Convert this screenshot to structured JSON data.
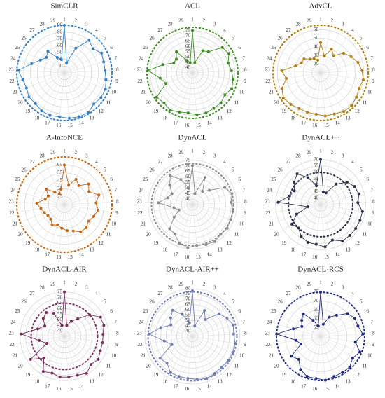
{
  "chart_data": [
    {
      "type": "radar",
      "title": "SimCLR",
      "color": "#2f7fc8",
      "categories": [
        "1",
        "2",
        "3",
        "4",
        "5",
        "6",
        "7",
        "8",
        "9",
        "10",
        "11",
        "12",
        "13",
        "14",
        "15",
        "16",
        "17",
        "18",
        "19",
        "20",
        "21",
        "22",
        "23",
        "24",
        "25",
        "26",
        "27",
        "28",
        "29"
      ],
      "values": [
        90,
        35,
        60,
        80,
        75,
        82,
        80,
        80,
        82,
        85,
        85,
        83,
        88,
        88,
        87,
        85,
        86,
        85,
        82,
        83,
        80,
        82,
        88,
        70,
        60,
        55,
        60,
        45,
        40
      ],
      "rlim": [
        20,
        90
      ],
      "rticks": [
        30,
        40,
        50,
        60,
        70,
        80,
        90
      ],
      "reference": 90
    },
    {
      "type": "radar",
      "title": "ACL",
      "color": "#3a8f1e",
      "categories": [
        "1",
        "2",
        "3",
        "4",
        "5",
        "6",
        "7",
        "8",
        "9",
        "10",
        "11",
        "12",
        "13",
        "14",
        "15",
        "16",
        "17",
        "18",
        "19",
        "20",
        "21",
        "22",
        "23",
        "24",
        "25",
        "26",
        "27",
        "28",
        "29"
      ],
      "values": [
        75,
        45,
        58,
        60,
        72,
        74,
        70,
        72,
        74,
        75,
        72,
        74,
        74,
        75,
        75,
        73,
        74,
        76,
        74,
        76,
        62,
        66,
        77,
        64,
        55,
        55,
        60,
        48,
        45
      ],
      "rlim": [
        35,
        80
      ],
      "rticks": [
        40,
        45,
        50,
        55,
        60,
        65,
        70,
        75
      ],
      "reference": 78
    },
    {
      "type": "radar",
      "title": "AdvCL",
      "color": "#b07d0a",
      "categories": [
        "1",
        "2",
        "3",
        "4",
        "5",
        "6",
        "7",
        "8",
        "9",
        "10",
        "11",
        "12",
        "13",
        "14",
        "15",
        "16",
        "17",
        "18",
        "19",
        "20",
        "21",
        "22",
        "23",
        "24",
        "25",
        "26",
        "27",
        "28",
        "29"
      ],
      "values": [
        45,
        30,
        40,
        35,
        45,
        50,
        55,
        58,
        60,
        58,
        60,
        62,
        62,
        60,
        60,
        58,
        58,
        58,
        60,
        62,
        58,
        50,
        55,
        40,
        35,
        35,
        30,
        28,
        25
      ],
      "rlim": [
        10,
        65
      ],
      "rticks": [
        20,
        30,
        40,
        50,
        60
      ],
      "reference": 65
    },
    {
      "type": "radar",
      "title": "A-InfoNCE",
      "color": "#c8640f",
      "categories": [
        "1",
        "2",
        "3",
        "4",
        "5",
        "6",
        "7",
        "8",
        "9",
        "10",
        "11",
        "12",
        "13",
        "14",
        "15",
        "16",
        "17",
        "18",
        "19",
        "20",
        "21",
        "22",
        "23",
        "24",
        "25",
        "26",
        "27",
        "28",
        "29"
      ],
      "values": [
        65,
        40,
        50,
        45,
        55,
        50,
        60,
        55,
        58,
        55,
        52,
        55,
        55,
        50,
        48,
        45,
        42,
        45,
        40,
        40,
        42,
        45,
        50,
        40,
        38,
        45,
        35,
        30,
        35
      ],
      "rlim": [
        15,
        75
      ],
      "rticks": [
        25,
        35,
        45,
        55,
        65
      ],
      "reference": 75
    },
    {
      "type": "radar",
      "title": "DynACL",
      "color": "#8a8a8a",
      "categories": [
        "1",
        "2",
        "3",
        "4",
        "5",
        "6",
        "7",
        "8",
        "9",
        "10",
        "11",
        "12",
        "13",
        "14",
        "15",
        "16",
        "17",
        "18",
        "19",
        "20",
        "21",
        "22",
        "23",
        "24",
        "25",
        "26",
        "27",
        "28",
        "29"
      ],
      "values": [
        70,
        45,
        62,
        50,
        55,
        68,
        72,
        70,
        72,
        72,
        73,
        72,
        74,
        73,
        72,
        74,
        72,
        66,
        65,
        55,
        48,
        52,
        66,
        58,
        56,
        62,
        68,
        60,
        50
      ],
      "rlim": [
        35,
        78
      ],
      "rticks": [
        40,
        45,
        50,
        55,
        60,
        65,
        70,
        75
      ],
      "reference": 72
    },
    {
      "type": "radar",
      "title": "DynACL++",
      "color": "#28304a",
      "categories": [
        "1",
        "2",
        "3",
        "4",
        "5",
        "6",
        "7",
        "8",
        "9",
        "10",
        "11",
        "12",
        "13",
        "14",
        "15",
        "16",
        "17",
        "18",
        "19",
        "20",
        "21",
        "22",
        "23",
        "24",
        "25",
        "26",
        "27",
        "28",
        "29"
      ],
      "values": [
        70,
        45,
        45,
        55,
        62,
        65,
        66,
        64,
        68,
        68,
        68,
        68,
        68,
        64,
        68,
        66,
        66,
        64,
        60,
        62,
        55,
        45,
        68,
        60,
        58,
        62,
        65,
        58,
        50
      ],
      "rlim": [
        35,
        72
      ],
      "rticks": [
        40,
        45,
        50,
        55,
        60,
        65,
        70
      ],
      "reference": 60
    },
    {
      "type": "radar",
      "title": "DynACL-AIR",
      "color": "#7a2a5e",
      "categories": [
        "1",
        "2",
        "3",
        "4",
        "5",
        "6",
        "7",
        "8",
        "9",
        "10",
        "11",
        "12",
        "13",
        "14",
        "15",
        "16",
        "17",
        "18",
        "19",
        "20",
        "21",
        "22",
        "23",
        "24",
        "25",
        "26",
        "27",
        "28",
        "29"
      ],
      "values": [
        75,
        45,
        50,
        55,
        65,
        72,
        72,
        70,
        70,
        70,
        72,
        70,
        74,
        72,
        72,
        72,
        70,
        72,
        62,
        72,
        52,
        58,
        74,
        60,
        55,
        60,
        62,
        58,
        45
      ],
      "rlim": [
        35,
        78
      ],
      "rticks": [
        40,
        45,
        50,
        55,
        60,
        65,
        70,
        75
      ],
      "reference": 65
    },
    {
      "type": "radar",
      "title": "DynACL-AIR++",
      "color": "#6f7db5",
      "categories": [
        "1",
        "2",
        "3",
        "4",
        "5",
        "6",
        "7",
        "8",
        "9",
        "10",
        "11",
        "12",
        "13",
        "14",
        "15",
        "16",
        "17",
        "18",
        "19",
        "20",
        "21",
        "22",
        "23",
        "24",
        "25",
        "26",
        "27",
        "28",
        "29"
      ],
      "values": [
        78,
        45,
        62,
        55,
        68,
        72,
        75,
        74,
        76,
        76,
        76,
        75,
        76,
        77,
        76,
        75,
        75,
        75,
        70,
        72,
        56,
        62,
        76,
        66,
        58,
        62,
        66,
        58,
        48
      ],
      "rlim": [
        35,
        80
      ],
      "rticks": [
        40,
        45,
        50,
        55,
        60,
        65,
        70,
        75,
        80
      ],
      "reference": 77
    },
    {
      "type": "radar",
      "title": "DynACL-RCS",
      "color": "#1e2a80",
      "categories": [
        "1",
        "2",
        "3",
        "4",
        "5",
        "6",
        "7",
        "8",
        "9",
        "10",
        "11",
        "12",
        "13",
        "14",
        "15",
        "16",
        "17",
        "18",
        "19",
        "20",
        "21",
        "22",
        "23",
        "24",
        "25",
        "26",
        "27",
        "28",
        "29"
      ],
      "values": [
        75,
        57,
        62,
        65,
        70,
        72,
        72,
        74,
        70,
        74,
        72,
        74,
        74,
        74,
        75,
        74,
        74,
        72,
        68,
        70,
        62,
        64,
        75,
        66,
        62,
        64,
        66,
        60,
        56
      ],
      "rlim": [
        50,
        77
      ],
      "rticks": [
        55,
        60,
        65,
        70,
        75
      ],
      "reference": 75
    }
  ]
}
